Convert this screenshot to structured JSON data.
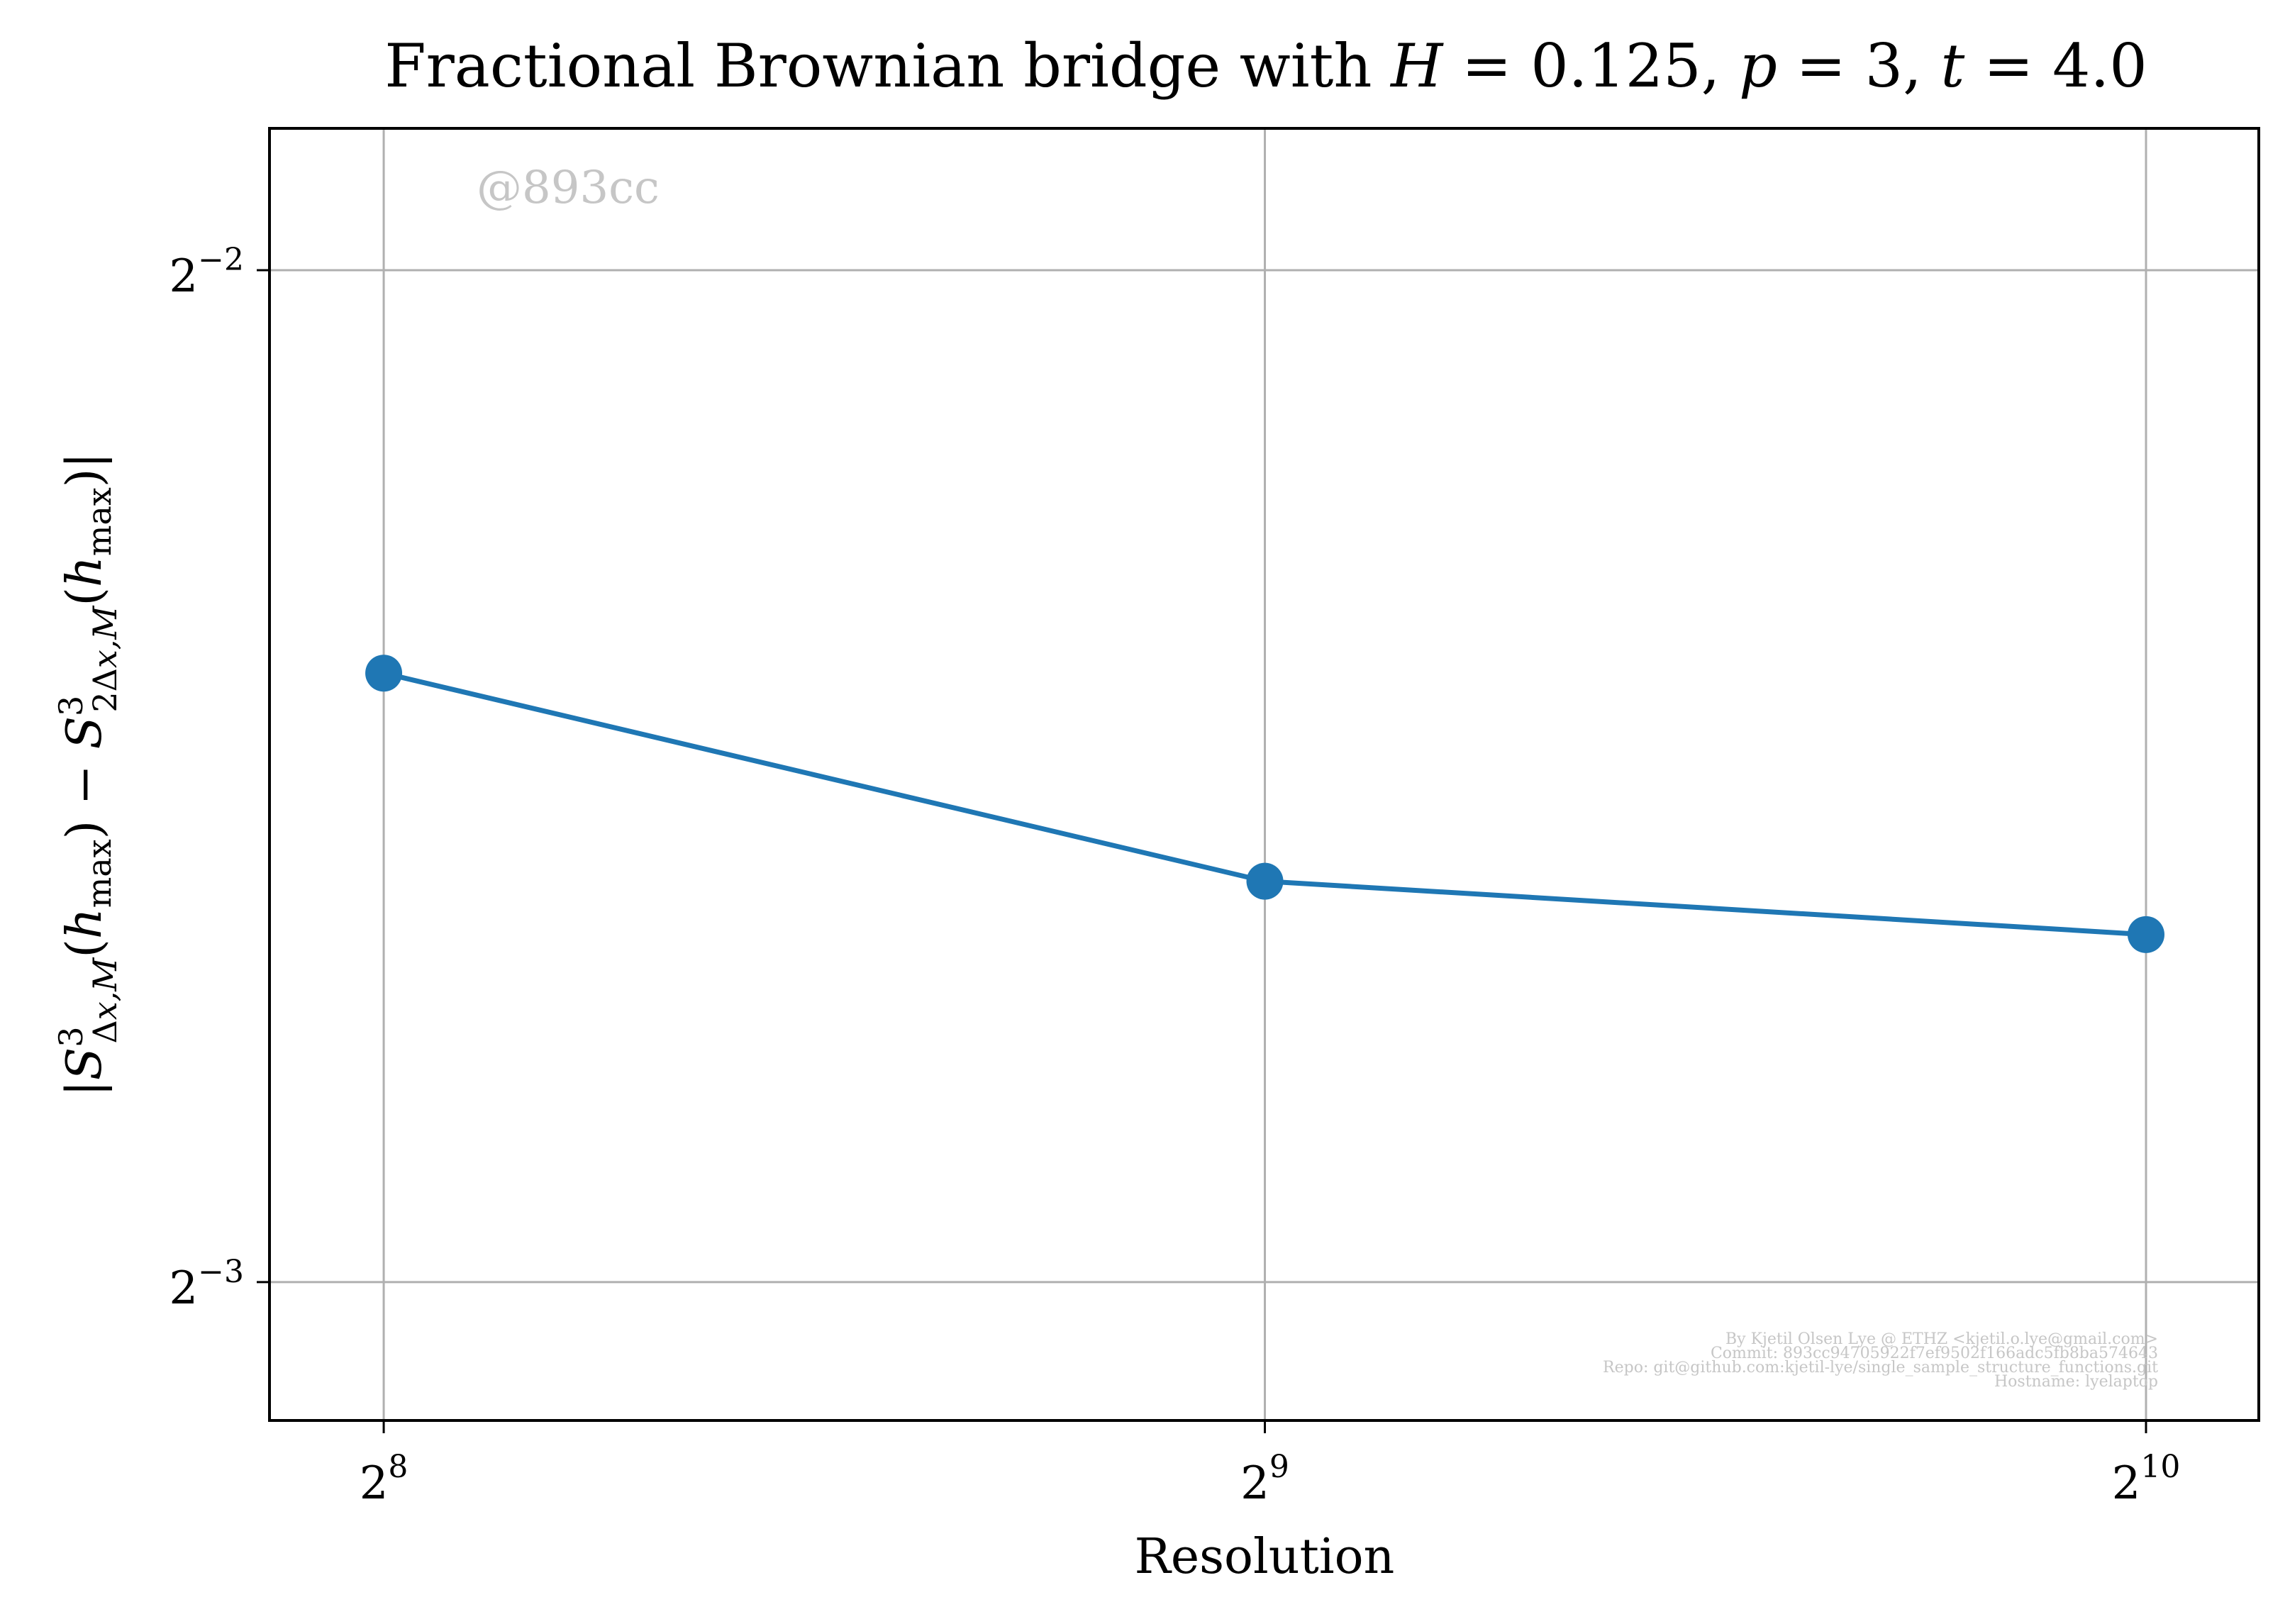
{
  "chart_data": {
    "type": "line",
    "title": "Fractional Brownian bridge with H = 0.125, p = 3, t = 4.0",
    "xlabel": "Resolution",
    "ylabel": "|S³Δx,M(hmax) − S³2Δx,M(hmax)|",
    "x_scale": "log2",
    "y_scale": "log2",
    "x": [
      256,
      512,
      1024
    ],
    "series": [
      {
        "values": [
          0.1897,
          0.1645,
          0.1586
        ],
        "color": "#1f77b4"
      }
    ],
    "xlim": [
      234,
      1119
    ],
    "ylim": [
      0.1137,
      0.2755
    ],
    "x_ticks": [
      {
        "value": 256,
        "base": "2",
        "exp": "8"
      },
      {
        "value": 512,
        "base": "2",
        "exp": "9"
      },
      {
        "value": 1024,
        "base": "2",
        "exp": "10"
      }
    ],
    "y_ticks": [
      {
        "value": 0.25,
        "base": "2",
        "exp": "−2"
      },
      {
        "value": 0.125,
        "base": "2",
        "exp": "−3"
      }
    ],
    "grid": true,
    "legend": "none"
  },
  "watermark": "@893cc",
  "credits": [
    "By Kjetil Olsen Lye @ ETHZ <kjetil.o.lye@gmail.com>",
    "Commit: 893cc94705922f7ef9502f166adc5fb8ba574643",
    "Repo: git@github.com:kjetil-lye/single_sample_structure_functions.git",
    "Hostname: lyelaptop"
  ],
  "colors": {
    "line": "#1f77b4",
    "grid": "#b0b0b0",
    "watermark": "#c6c6c6"
  }
}
